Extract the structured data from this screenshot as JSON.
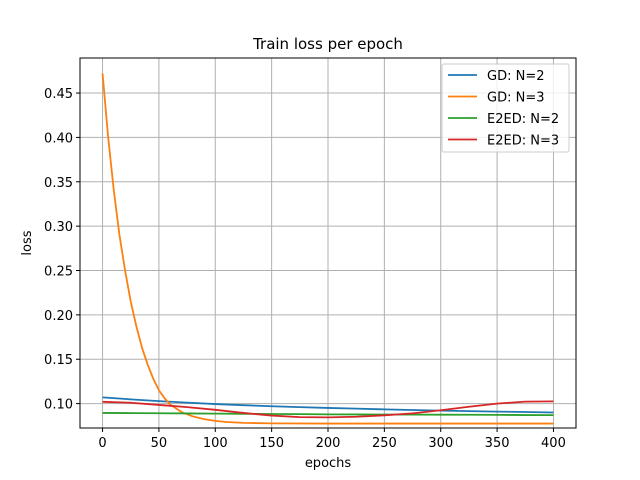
{
  "chart_data": {
    "type": "line",
    "title": "Train loss per epoch",
    "xlabel": "epochs",
    "ylabel": "loss",
    "xlim": [
      -20,
      420
    ],
    "ylim": [
      0.0725,
      0.4895
    ],
    "x_ticks": [
      0,
      50,
      100,
      150,
      200,
      250,
      300,
      350,
      400
    ],
    "y_ticks": [
      0.1,
      0.15,
      0.2,
      0.25,
      0.3,
      0.35,
      0.4,
      0.45
    ],
    "grid": true,
    "legend_position": "top-right",
    "series": [
      {
        "name": "GD: N=2",
        "color": "#1f77b4",
        "x": [
          0,
          25,
          50,
          75,
          100,
          125,
          150,
          175,
          200,
          225,
          250,
          275,
          300,
          325,
          350,
          375,
          400
        ],
        "y": [
          0.107,
          0.1048,
          0.1028,
          0.1011,
          0.0995,
          0.0982,
          0.097,
          0.096,
          0.0951,
          0.0943,
          0.0935,
          0.0928,
          0.0921,
          0.0915,
          0.091,
          0.0905,
          0.09
        ]
      },
      {
        "name": "GD: N=3",
        "color": "#ff7f0e",
        "x": [
          0,
          5,
          10,
          15,
          20,
          25,
          30,
          35,
          40,
          45,
          50,
          55,
          60,
          70,
          80,
          90,
          100,
          110,
          125,
          150,
          200,
          250,
          300,
          350,
          400
        ],
        "y": [
          0.472,
          0.4,
          0.34,
          0.29,
          0.25,
          0.215,
          0.187,
          0.163,
          0.144,
          0.128,
          0.115,
          0.106,
          0.099,
          0.0905,
          0.0856,
          0.0825,
          0.0805,
          0.0793,
          0.0783,
          0.0777,
          0.0775,
          0.0775,
          0.0775,
          0.0775,
          0.0775
        ]
      },
      {
        "name": "E2ED: N=2",
        "color": "#2ca02c",
        "x": [
          0,
          25,
          50,
          75,
          100,
          125,
          150,
          175,
          200,
          225,
          250,
          275,
          300,
          325,
          350,
          375,
          400
        ],
        "y": [
          0.0895,
          0.0893,
          0.0891,
          0.0889,
          0.0887,
          0.0885,
          0.0883,
          0.0881,
          0.0879,
          0.0878,
          0.0877,
          0.0876,
          0.0875,
          0.0874,
          0.0873,
          0.0871,
          0.087
        ]
      },
      {
        "name": "E2ED: N=3",
        "color": "#d62728",
        "x": [
          0,
          25,
          50,
          75,
          100,
          125,
          150,
          175,
          200,
          225,
          250,
          275,
          300,
          325,
          350,
          375,
          400
        ],
        "y": [
          0.102,
          0.101,
          0.0985,
          0.096,
          0.093,
          0.0895,
          0.0865,
          0.0848,
          0.0845,
          0.0852,
          0.0868,
          0.089,
          0.0925,
          0.0965,
          0.1,
          0.1022,
          0.1025
        ]
      }
    ]
  }
}
